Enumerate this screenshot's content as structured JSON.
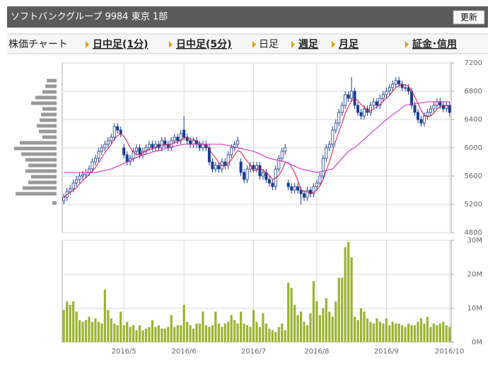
{
  "header": {
    "title": "ソフトバンクグループ 9984 東京 1部",
    "button": "更新"
  },
  "tabs": [
    {
      "label": "株価チャート"
    },
    {
      "label": "日中足(1分)"
    },
    {
      "label": "日中足(5分)"
    },
    {
      "label": "日足"
    },
    {
      "label": "週足"
    },
    {
      "label": "月足"
    },
    {
      "label": "証金･信用"
    }
  ],
  "chart_data": [
    {
      "type": "candlestick",
      "color": "#1a3d8f",
      "grid": true,
      "ylim": [
        4800,
        7200
      ],
      "yticks": [
        4800,
        5200,
        5600,
        6000,
        6400,
        6800,
        7200
      ],
      "open": [
        5250,
        5300,
        5380,
        5420,
        5500,
        5550,
        5600,
        5620,
        5650,
        5700,
        5800,
        5850,
        5950,
        6000,
        6050,
        6100,
        6150,
        6300,
        6250,
        6000,
        5900,
        5800,
        5850,
        5950,
        6000,
        5900,
        5950,
        6000,
        6050,
        6000,
        6050,
        6000,
        6100,
        6050,
        6000,
        6100,
        6150,
        6100,
        6250,
        6150,
        6100,
        6050,
        6100,
        6050,
        6000,
        6050,
        6000,
        5800,
        5700,
        5750,
        5700,
        5800,
        5750,
        5900,
        6000,
        6050,
        5800,
        5650,
        5550,
        5700,
        5750,
        5700,
        5750,
        5600,
        5650,
        5550,
        5500,
        5450,
        5700,
        5850,
        5950,
        5500,
        5450,
        5400,
        5450,
        5400,
        5350,
        5300,
        5400,
        5350,
        5450,
        5500,
        5600,
        5850,
        6000,
        6050,
        6250,
        6350,
        6500,
        6600,
        6750,
        6700,
        6800,
        6600,
        6500,
        6450,
        6550,
        6500,
        6600,
        6650,
        6600,
        6700,
        6750,
        6800,
        6850,
        6900,
        6950,
        6900,
        6850,
        6850,
        6800,
        6600,
        6500,
        6400,
        6350,
        6450,
        6500,
        6550,
        6600,
        6650,
        6600,
        6550,
        6600
      ],
      "high": [
        5350,
        5430,
        5470,
        5550,
        5600,
        5650,
        5670,
        5700,
        5750,
        5850,
        5900,
        6000,
        6050,
        6100,
        6150,
        6200,
        6350,
        6350,
        6300,
        6050,
        5950,
        5900,
        6000,
        6050,
        6050,
        6000,
        6050,
        6100,
        6100,
        6100,
        6100,
        6150,
        6150,
        6100,
        6150,
        6200,
        6200,
        6250,
        6450,
        6200,
        6150,
        6150,
        6150,
        6100,
        6100,
        6100,
        6050,
        5850,
        5800,
        5800,
        5850,
        5850,
        5950,
        6050,
        6100,
        6150,
        5850,
        5700,
        5750,
        5800,
        5800,
        5800,
        5800,
        5700,
        5700,
        5600,
        5550,
        5750,
        5900,
        6000,
        6050,
        5550,
        5500,
        5500,
        5500,
        5450,
        5400,
        5450,
        5450,
        5500,
        5550,
        5650,
        5900,
        6050,
        6100,
        6300,
        6400,
        6550,
        6650,
        6800,
        6800,
        7000,
        6850,
        6650,
        6550,
        6600,
        6600,
        6650,
        6700,
        6700,
        6750,
        6800,
        6850,
        6900,
        6950,
        7000,
        7000,
        6950,
        6900,
        6900,
        6850,
        6650,
        6550,
        6450,
        6500,
        6550,
        6600,
        6650,
        6700,
        6700,
        6650,
        6650,
        6650
      ],
      "low": [
        5200,
        5250,
        5330,
        5370,
        5450,
        5500,
        5550,
        5570,
        5600,
        5650,
        5750,
        5800,
        5900,
        5950,
        6000,
        6050,
        6100,
        6200,
        6150,
        5850,
        5750,
        5750,
        5800,
        5900,
        5850,
        5850,
        5900,
        5950,
        5950,
        5950,
        5950,
        5950,
        6000,
        5950,
        5950,
        6050,
        6050,
        6050,
        6100,
        6050,
        6000,
        6000,
        6000,
        5950,
        5950,
        5950,
        5750,
        5650,
        5650,
        5650,
        5650,
        5700,
        5700,
        5850,
        5950,
        6000,
        5600,
        5500,
        5500,
        5650,
        5650,
        5650,
        5550,
        5550,
        5500,
        5450,
        5400,
        5400,
        5650,
        5800,
        5900,
        5400,
        5350,
        5350,
        5350,
        5200,
        5250,
        5250,
        5300,
        5300,
        5400,
        5450,
        5550,
        5800,
        5950,
        6000,
        6200,
        6300,
        6450,
        6550,
        6650,
        6650,
        6550,
        6450,
        6400,
        6400,
        6450,
        6450,
        6550,
        6550,
        6550,
        6650,
        6700,
        6750,
        6800,
        6850,
        6850,
        6800,
        6800,
        6750,
        6550,
        6450,
        6350,
        6300,
        6300,
        6400,
        6450,
        6500,
        6550,
        6550,
        6500,
        6500,
        6450
      ],
      "close": [
        5300,
        5380,
        5420,
        5500,
        5550,
        5600,
        5620,
        5650,
        5700,
        5800,
        5850,
        5950,
        6000,
        6050,
        6100,
        6150,
        6300,
        6250,
        6200,
        5900,
        5800,
        5850,
        5950,
        6000,
        5900,
        5950,
        6000,
        6050,
        6000,
        6050,
        6000,
        6100,
        6050,
        6000,
        6100,
        6150,
        6100,
        6200,
        6150,
        6100,
        6050,
        6100,
        6050,
        6000,
        6050,
        6000,
        5800,
        5700,
        5750,
        5700,
        5800,
        5750,
        5900,
        6000,
        6050,
        6100,
        5650,
        5550,
        5700,
        5750,
        5700,
        5750,
        5600,
        5650,
        5550,
        5500,
        5450,
        5700,
        5850,
        5950,
        6000,
        5450,
        5400,
        5450,
        5400,
        5350,
        5300,
        5400,
        5350,
        5450,
        5500,
        5600,
        5850,
        6000,
        6050,
        6250,
        6350,
        6500,
        6600,
        6750,
        6700,
        6800,
        6600,
        6500,
        6450,
        6550,
        6500,
        6600,
        6650,
        6600,
        6700,
        6750,
        6800,
        6850,
        6900,
        6950,
        6900,
        6850,
        6850,
        6800,
        6600,
        6500,
        6400,
        6350,
        6450,
        6500,
        6550,
        6600,
        6650,
        6600,
        6550,
        6600,
        6500
      ],
      "series": [
        {
          "color": "#dd1144",
          "values": [
            5300,
            5340,
            5370,
            5400,
            5430,
            5490,
            5540,
            5580,
            5620,
            5670,
            5720,
            5790,
            5860,
            5930,
            5990,
            6050,
            6120,
            6170,
            6200,
            6160,
            6090,
            6000,
            5940,
            5900,
            5900,
            5930,
            5960,
            5980,
            5980,
            6010,
            6020,
            6040,
            6040,
            6040,
            6050,
            6080,
            6080,
            6110,
            6140,
            6140,
            6120,
            6120,
            6090,
            6060,
            6050,
            6040,
            5980,
            5910,
            5860,
            5790,
            5750,
            5740,
            5780,
            5830,
            5900,
            5960,
            5940,
            5870,
            5810,
            5750,
            5670,
            5690,
            5700,
            5690,
            5650,
            5610,
            5550,
            5570,
            5610,
            5690,
            5790,
            5790,
            5730,
            5650,
            5540,
            5410,
            5380,
            5380,
            5360,
            5370,
            5400,
            5460,
            5550,
            5680,
            5800,
            5950,
            6100,
            6230,
            6350,
            6490,
            6580,
            6670,
            6690,
            6670,
            6610,
            6580,
            6520,
            6520,
            6550,
            6580,
            6610,
            6660,
            6700,
            6740,
            6800,
            6850,
            6880,
            6890,
            6890,
            6870,
            6800,
            6720,
            6630,
            6530,
            6460,
            6440,
            6450,
            6490,
            6550,
            6580,
            6590,
            6600,
            6580
          ]
        },
        {
          "color": "#cc22cc",
          "values": [
            5650,
            5650,
            5650,
            5650,
            5650,
            5650,
            5650,
            5650,
            5650,
            5650,
            5650,
            5660,
            5670,
            5680,
            5690,
            5700,
            5720,
            5740,
            5760,
            5780,
            5800,
            5820,
            5840,
            5860,
            5880,
            5900,
            5910,
            5920,
            5940,
            5950,
            5960,
            5970,
            5990,
            6000,
            6010,
            6020,
            6030,
            6040,
            6050,
            6050,
            6050,
            6050,
            6050,
            6050,
            6050,
            6050,
            6050,
            6050,
            6050,
            6050,
            6050,
            6040,
            6030,
            6020,
            6010,
            6000,
            5990,
            5980,
            5970,
            5960,
            5950,
            5930,
            5910,
            5890,
            5870,
            5850,
            5840,
            5830,
            5820,
            5810,
            5800,
            5780,
            5760,
            5740,
            5720,
            5700,
            5690,
            5680,
            5670,
            5660,
            5650,
            5660,
            5670,
            5680,
            5690,
            5700,
            5750,
            5800,
            5850,
            5900,
            5950,
            5980,
            6000,
            6040,
            6080,
            6120,
            6160,
            6200,
            6240,
            6280,
            6320,
            6360,
            6400,
            6430,
            6470,
            6500,
            6530,
            6570,
            6600,
            6610,
            6620,
            6620,
            6630,
            6640,
            6640,
            6650,
            6650,
            6650,
            6650,
            6650,
            6650,
            6650,
            6650
          ]
        }
      ],
      "volume_by_price": {
        "color": "#999999",
        "prices": [
          6950,
          6870,
          6790,
          6710,
          6630,
          6550,
          6470,
          6390,
          6310,
          6230,
          6150,
          6070,
          5990,
          5910,
          5830,
          5750,
          5670,
          5590,
          5510,
          5430,
          5350,
          5220
        ],
        "values": [
          14,
          16,
          20,
          30,
          36,
          20,
          22,
          24,
          28,
          25,
          20,
          52,
          60,
          50,
          44,
          40,
          44,
          36,
          40,
          48,
          58,
          6
        ]
      }
    },
    {
      "type": "bar",
      "color": "#99b433",
      "grid": true,
      "ylim": [
        0,
        30000000
      ],
      "yticks": [
        {
          "value": 0,
          "label": "0M"
        },
        {
          "value": 10000000,
          "label": "10M"
        },
        {
          "value": 20000000,
          "label": "20M"
        },
        {
          "value": 30000000,
          "label": "30M"
        }
      ],
      "categories": [
        null,
        null,
        null,
        null,
        null,
        null,
        null,
        null,
        null,
        null,
        null,
        null,
        null,
        null,
        null,
        null,
        null,
        null,
        null,
        "2016/5",
        null,
        null,
        null,
        null,
        null,
        null,
        null,
        null,
        null,
        null,
        null,
        null,
        null,
        null,
        null,
        null,
        null,
        null,
        "2016/6",
        null,
        null,
        null,
        null,
        null,
        null,
        null,
        null,
        null,
        null,
        null,
        null,
        null,
        null,
        null,
        null,
        null,
        null,
        null,
        null,
        null,
        "2016/7",
        null,
        null,
        null,
        null,
        null,
        null,
        null,
        null,
        null,
        null,
        null,
        null,
        null,
        null,
        null,
        null,
        null,
        null,
        null,
        "2016/8",
        null,
        null,
        null,
        null,
        null,
        null,
        null,
        null,
        null,
        null,
        null,
        null,
        null,
        null,
        null,
        null,
        null,
        null,
        null,
        null,
        null,
        "2016/9",
        null,
        null,
        null,
        null,
        null,
        null,
        null,
        null,
        null,
        null,
        null,
        null,
        null,
        null,
        null,
        null,
        null,
        null,
        null,
        "2016/10"
      ],
      "values": [
        9500000,
        12000000,
        11000000,
        12000000,
        9000000,
        6500000,
        6000000,
        6500000,
        7500000,
        6000000,
        7000000,
        6000000,
        5500000,
        15500000,
        9500000,
        7000000,
        5500000,
        5000000,
        9000000,
        5000000,
        6000000,
        4500000,
        5000000,
        3500000,
        5000000,
        3500000,
        4000000,
        4500000,
        6500000,
        4500000,
        5000000,
        4000000,
        4000000,
        4500000,
        8000000,
        4500000,
        5000000,
        5000000,
        11000000,
        6000000,
        5000000,
        4000000,
        5500000,
        5500000,
        9000000,
        5000000,
        4500000,
        5000000,
        9000000,
        5500000,
        4500000,
        5500000,
        6000000,
        8000000,
        6500000,
        5500000,
        9000000,
        5500000,
        5000000,
        4500000,
        9500000,
        6000000,
        4500000,
        8500000,
        5500000,
        4000000,
        3500000,
        3000000,
        4500000,
        5500000,
        3500000,
        17500000,
        16000000,
        11000000,
        8000000,
        9000000,
        6000000,
        5000000,
        8500000,
        18000000,
        12000000,
        8000000,
        10000000,
        13000000,
        9000000,
        7500000,
        12000000,
        19000000,
        19000000,
        28000000,
        29500000,
        25000000,
        7500000,
        6500000,
        10000000,
        9000000,
        7000000,
        6000000,
        5500000,
        7000000,
        6000000,
        5500000,
        7000000,
        5000000,
        6000000,
        5500000,
        5500000,
        5000000,
        4500000,
        5500000,
        5000000,
        5000000,
        6000000,
        7000000,
        5500000,
        7500000,
        4500000,
        5500000,
        5000000,
        5500000,
        6000000,
        5000000,
        4500000
      ]
    }
  ]
}
